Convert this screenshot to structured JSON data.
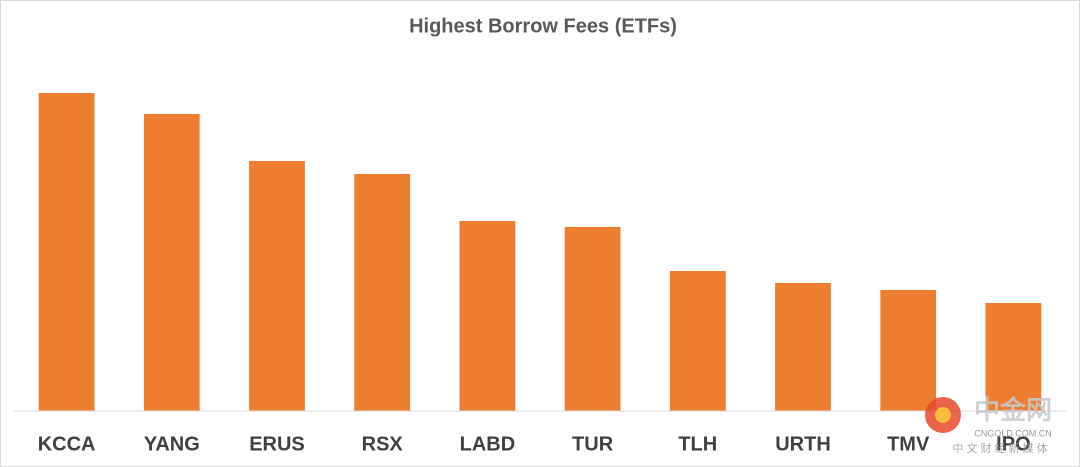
{
  "chart_data": {
    "type": "bar",
    "title": "Highest Borrow Fees (ETFs)",
    "categories": [
      "KCCA",
      "YANG",
      "ERUS",
      "RSX",
      "LABD",
      "TUR",
      "TLH",
      "URTH",
      "TMV",
      "IPO"
    ],
    "values": [
      318,
      297,
      250,
      237,
      190,
      184,
      140,
      128,
      121,
      108
    ],
    "color": "#ed7d31",
    "ylim": [
      0,
      340
    ],
    "grid": false
  },
  "watermark": {
    "logo": "中金网",
    "site": "CNGOLD.COM.CN",
    "tagline": "中 文 财 经 新 媒 体"
  }
}
